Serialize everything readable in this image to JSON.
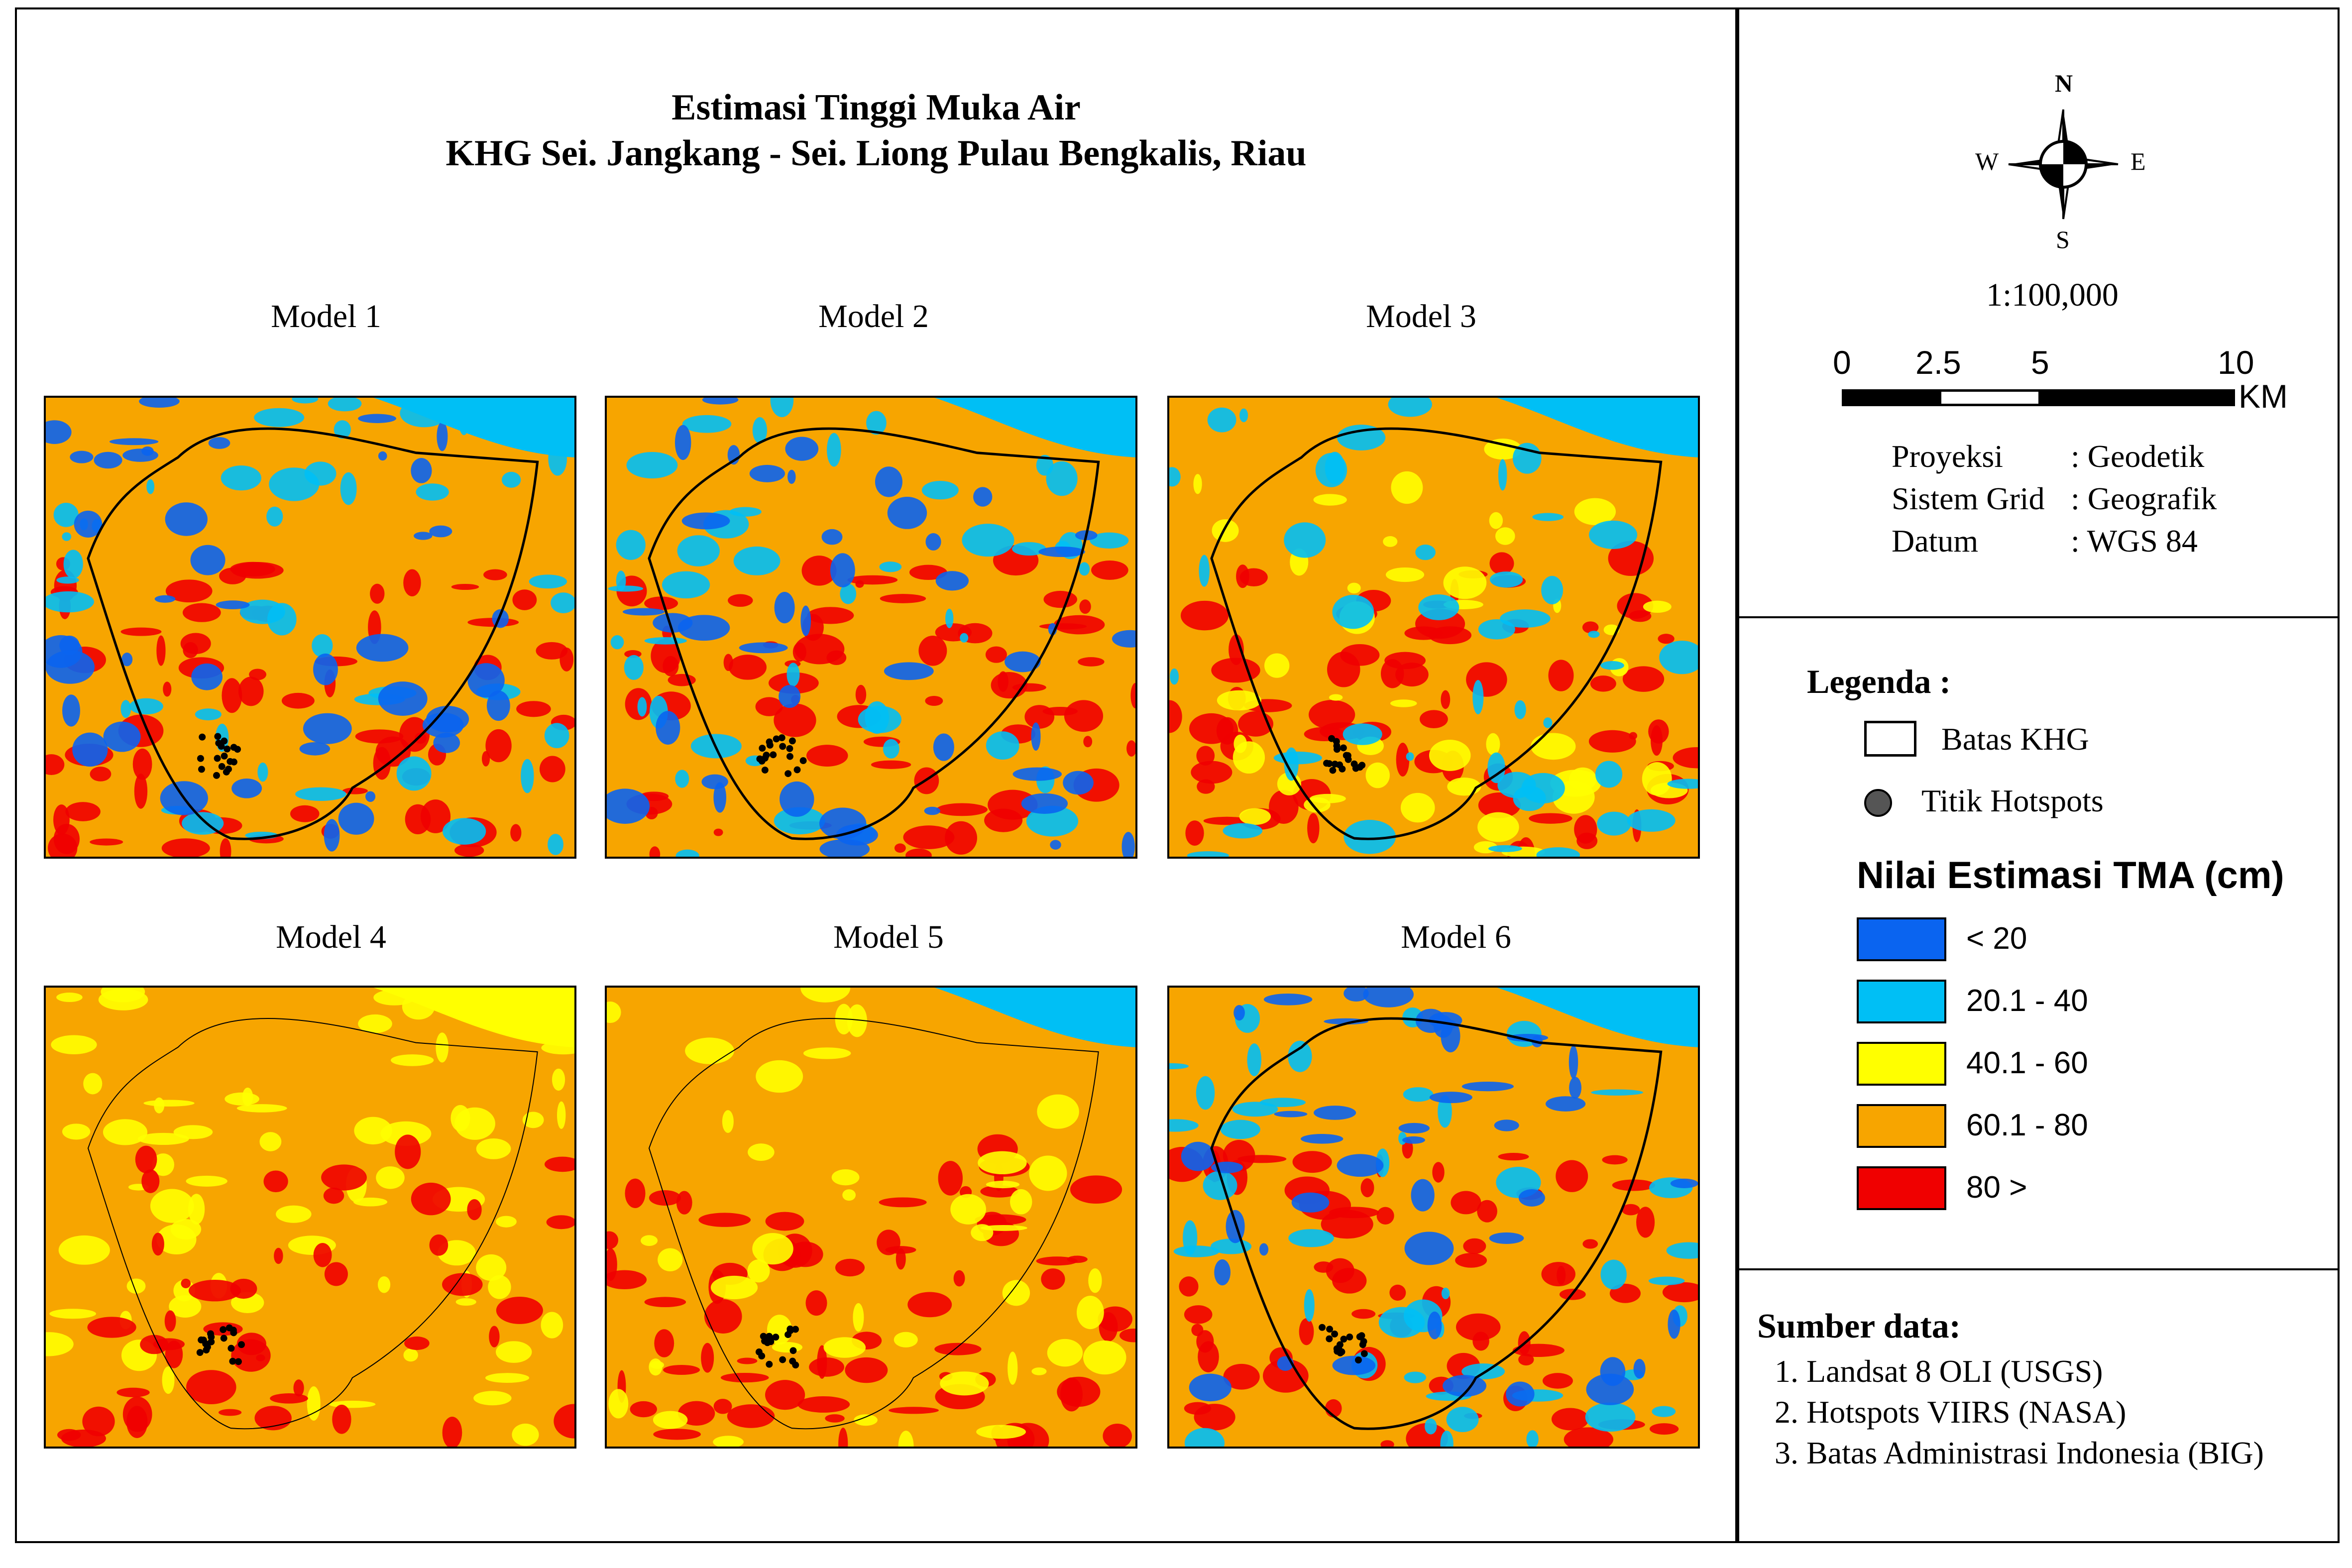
{
  "map_title": {
    "line1": "Estimasi Tinggi Muka Air",
    "line2": "KHG Sei. Jangkang - Sei. Liong Pulau Bengkalis, Riau"
  },
  "panels": [
    {
      "label": "Model 1",
      "dominant_class": "60.1 - 80",
      "secondary_classes": [
        "80 >",
        "20.1 - 40",
        "< 20"
      ]
    },
    {
      "label": "Model 2",
      "dominant_class": "60.1 - 80",
      "secondary_classes": [
        "80 >",
        "20.1 - 40",
        "< 20"
      ]
    },
    {
      "label": "Model 3",
      "dominant_class": "60.1 - 80",
      "secondary_classes": [
        "80 >",
        "40.1 - 60",
        "20.1 - 40"
      ]
    },
    {
      "label": "Model 4",
      "dominant_class": "60.1 - 80",
      "secondary_classes": [
        "40.1 - 60",
        "80 >"
      ]
    },
    {
      "label": "Model 5",
      "dominant_class": "60.1 - 80",
      "secondary_classes": [
        "80 >",
        "40.1 - 60"
      ]
    },
    {
      "label": "Model 6",
      "dominant_class": "60.1 - 80",
      "secondary_classes": [
        "80 >",
        "20.1 - 40",
        "< 20"
      ]
    }
  ],
  "compass": {
    "n": "N",
    "s": "S",
    "e": "E",
    "w": "W"
  },
  "scale": {
    "ratio": "1:100,000",
    "ticks": [
      "0",
      "2.5",
      "5",
      "10"
    ],
    "unit": "KM"
  },
  "projection_info": [
    {
      "key": "Proyeksi",
      "value": ": Geodetik"
    },
    {
      "key": "Sistem Grid",
      "value": ": Geografik"
    },
    {
      "key": "Datum",
      "value": ": WGS 84"
    }
  ],
  "legend": {
    "title": "Legenda :",
    "boundary_label": "Batas KHG",
    "hotspot_label": "Titik Hotspots",
    "tma_title": "Nilai Estimasi TMA (cm)",
    "classes": [
      {
        "label": "< 20",
        "color": "#0a64f0"
      },
      {
        "label": "20.1 - 40",
        "color": "#00bff5"
      },
      {
        "label": "40.1 - 60",
        "color": "#ffff00"
      },
      {
        "label": "60.1 - 80",
        "color": "#f7a500"
      },
      {
        "label": "80 >",
        "color": "#f00000"
      }
    ]
  },
  "sources": {
    "title": "Sumber data:",
    "items": [
      "1. Landsat 8 OLI (USGS)",
      "2. Hotspots VIIRS (NASA)",
      "3. Batas Administrasi Indonesia (BIG)"
    ]
  }
}
